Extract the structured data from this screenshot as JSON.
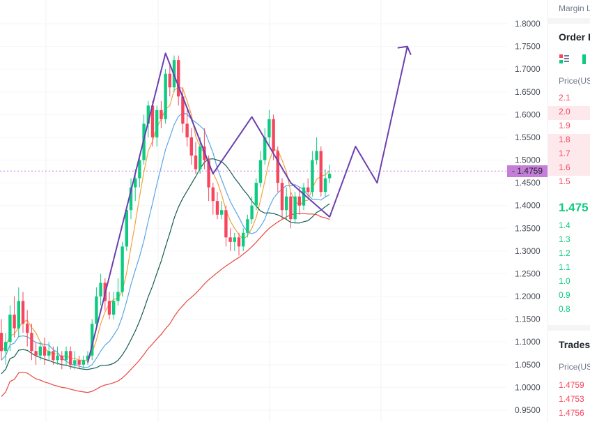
{
  "header": {
    "margin_label": "Margin L"
  },
  "order_book": {
    "title": "Order B",
    "price_header": "Price(US",
    "layout_icons": [
      "order-book-both-icon",
      "order-book-bids-icon"
    ],
    "asks": [
      "2.1",
      "2.0",
      "1.9",
      "1.8",
      "1.7",
      "1.6",
      "1.5"
    ],
    "mid_price": "1.475",
    "bids": [
      "1.4",
      "1.3",
      "1.2",
      "1.1",
      "1.0",
      "0.9",
      "0.8"
    ]
  },
  "trades": {
    "title": "Trades",
    "price_header": "Price(US",
    "prices": [
      "1.4759",
      "1.4753",
      "1.4756"
    ]
  },
  "colors": {
    "up": "#0ecb81",
    "down": "#f6465d",
    "pattern": "#6b3fb0",
    "tag": "#c47ed8"
  },
  "chart_data": {
    "type": "candlestick",
    "current_price": "1.4759",
    "y_ticks": [
      "1.8000",
      "1.7500",
      "1.7000",
      "1.6500",
      "1.6000",
      "1.5500",
      "1.5000",
      "1.4500",
      "1.4000",
      "1.3500",
      "1.3000",
      "1.2500",
      "1.2000",
      "1.1500",
      "1.1000",
      "1.0500",
      "1.0000",
      "0.9500"
    ],
    "ylim": [
      0.93,
      1.82
    ],
    "candles": [
      [
        1.12,
        1.08,
        1.15,
        1.06
      ],
      [
        1.08,
        1.1,
        1.12,
        1.05
      ],
      [
        1.1,
        1.16,
        1.18,
        1.08
      ],
      [
        1.16,
        1.13,
        1.2,
        1.11
      ],
      [
        1.13,
        1.19,
        1.22,
        1.11
      ],
      [
        1.19,
        1.14,
        1.21,
        1.12
      ],
      [
        1.14,
        1.12,
        1.17,
        1.09
      ],
      [
        1.12,
        1.08,
        1.14,
        1.06
      ],
      [
        1.08,
        1.07,
        1.1,
        1.05
      ],
      [
        1.07,
        1.09,
        1.1,
        1.06
      ],
      [
        1.09,
        1.07,
        1.11,
        1.05
      ],
      [
        1.07,
        1.08,
        1.1,
        1.06
      ],
      [
        1.08,
        1.06,
        1.09,
        1.05
      ],
      [
        1.06,
        1.07,
        1.09,
        1.05
      ],
      [
        1.07,
        1.06,
        1.08,
        1.04
      ],
      [
        1.06,
        1.08,
        1.09,
        1.05
      ],
      [
        1.08,
        1.05,
        1.09,
        1.04
      ],
      [
        1.05,
        1.06,
        1.08,
        1.04
      ],
      [
        1.06,
        1.05,
        1.07,
        1.04
      ],
      [
        1.05,
        1.06,
        1.07,
        1.04
      ],
      [
        1.06,
        1.07,
        1.08,
        1.05
      ],
      [
        1.07,
        1.14,
        1.15,
        1.06
      ],
      [
        1.14,
        1.2,
        1.22,
        1.13
      ],
      [
        1.2,
        1.23,
        1.25,
        1.18
      ],
      [
        1.23,
        1.19,
        1.24,
        1.17
      ],
      [
        1.19,
        1.16,
        1.21,
        1.15
      ],
      [
        1.16,
        1.19,
        1.21,
        1.15
      ],
      [
        1.19,
        1.21,
        1.24,
        1.18
      ],
      [
        1.21,
        1.31,
        1.32,
        1.2
      ],
      [
        1.31,
        1.39,
        1.4,
        1.3
      ],
      [
        1.39,
        1.44,
        1.46,
        1.37
      ],
      [
        1.44,
        1.46,
        1.48,
        1.41
      ],
      [
        1.46,
        1.5,
        1.51,
        1.44
      ],
      [
        1.5,
        1.58,
        1.6,
        1.49
      ],
      [
        1.58,
        1.62,
        1.63,
        1.55
      ],
      [
        1.62,
        1.55,
        1.63,
        1.53
      ],
      [
        1.55,
        1.61,
        1.62,
        1.53
      ],
      [
        1.61,
        1.59,
        1.63,
        1.57
      ],
      [
        1.59,
        1.69,
        1.7,
        1.58
      ],
      [
        1.69,
        1.66,
        1.71,
        1.64
      ],
      [
        1.66,
        1.72,
        1.73,
        1.65
      ],
      [
        1.72,
        1.64,
        1.73,
        1.62
      ],
      [
        1.64,
        1.58,
        1.66,
        1.56
      ],
      [
        1.58,
        1.55,
        1.61,
        1.53
      ],
      [
        1.55,
        1.51,
        1.57,
        1.49
      ],
      [
        1.51,
        1.48,
        1.54,
        1.47
      ],
      [
        1.48,
        1.53,
        1.55,
        1.47
      ],
      [
        1.53,
        1.5,
        1.57,
        1.48
      ],
      [
        1.5,
        1.44,
        1.51,
        1.41
      ],
      [
        1.44,
        1.41,
        1.45,
        1.38
      ],
      [
        1.41,
        1.38,
        1.43,
        1.37
      ],
      [
        1.38,
        1.39,
        1.41,
        1.37
      ],
      [
        1.39,
        1.33,
        1.4,
        1.31
      ],
      [
        1.33,
        1.32,
        1.35,
        1.3
      ],
      [
        1.32,
        1.33,
        1.34,
        1.3
      ],
      [
        1.33,
        1.31,
        1.34,
        1.29
      ],
      [
        1.31,
        1.34,
        1.35,
        1.3
      ],
      [
        1.34,
        1.37,
        1.38,
        1.33
      ],
      [
        1.37,
        1.4,
        1.42,
        1.36
      ],
      [
        1.4,
        1.45,
        1.46,
        1.39
      ],
      [
        1.45,
        1.5,
        1.52,
        1.44
      ],
      [
        1.5,
        1.55,
        1.57,
        1.49
      ],
      [
        1.55,
        1.59,
        1.61,
        1.53
      ],
      [
        1.59,
        1.52,
        1.6,
        1.5
      ],
      [
        1.52,
        1.45,
        1.53,
        1.43
      ],
      [
        1.45,
        1.39,
        1.46,
        1.37
      ],
      [
        1.39,
        1.42,
        1.44,
        1.37
      ],
      [
        1.42,
        1.37,
        1.43,
        1.35
      ],
      [
        1.37,
        1.42,
        1.43,
        1.36
      ],
      [
        1.42,
        1.4,
        1.44,
        1.38
      ],
      [
        1.4,
        1.44,
        1.45,
        1.39
      ],
      [
        1.44,
        1.43,
        1.46,
        1.42
      ],
      [
        1.43,
        1.5,
        1.52,
        1.42
      ],
      [
        1.5,
        1.52,
        1.55,
        1.49
      ],
      [
        1.52,
        1.43,
        1.53,
        1.42
      ],
      [
        1.43,
        1.46,
        1.48,
        1.42
      ],
      [
        1.46,
        1.47,
        1.49,
        1.45
      ]
    ],
    "pattern_line": [
      [
        20,
        1.055
      ],
      [
        38,
        1.735
      ],
      [
        49,
        1.47
      ],
      [
        58,
        1.595
      ],
      [
        67,
        1.45
      ],
      [
        76,
        1.375
      ],
      [
        82,
        1.53
      ],
      [
        87,
        1.45
      ],
      [
        94,
        1.75
      ]
    ],
    "ma_lines": [
      {
        "name": "",
        "color": "#f0a33b",
        "period": 5
      },
      {
        "name": "",
        "color": "#5aa5e6",
        "period": 10
      },
      {
        "name": "",
        "color": "#0f5b52",
        "period": 20
      },
      {
        "name": "",
        "color": "#e8483f",
        "period": 40
      }
    ]
  }
}
